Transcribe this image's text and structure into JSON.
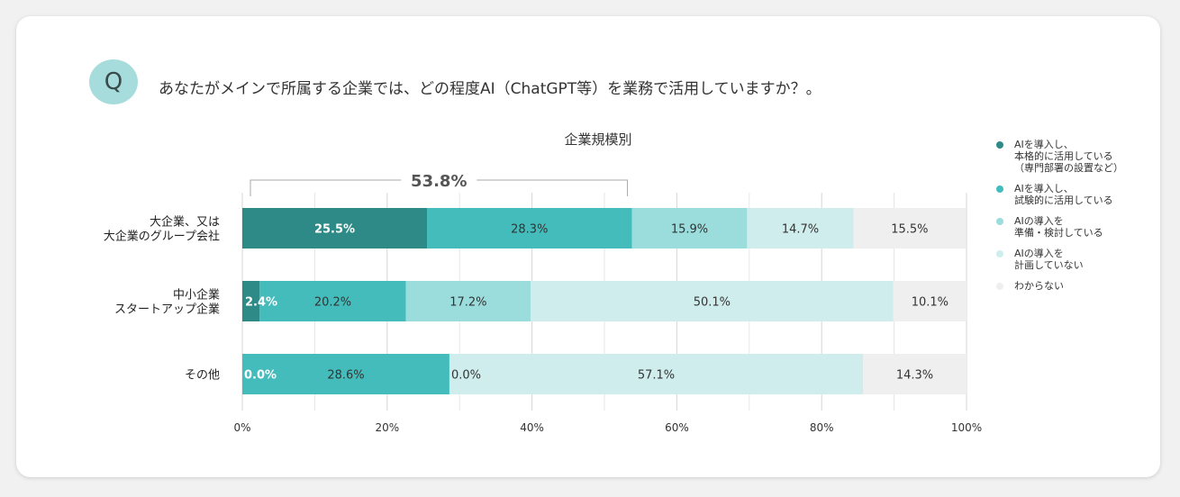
{
  "question": {
    "badge": "Q",
    "text": "あなたがメインで所属する企業では、どの程度AI（ChatGPT等）を業務で活用していますか？。"
  },
  "chart_data": {
    "type": "bar",
    "orientation": "horizontal",
    "stacked": true,
    "title": "企業規模別",
    "categories": [
      "大企業、又は\n大企業のグループ会社",
      "中小企業\nスタートアップ企業",
      "その他"
    ],
    "series": [
      {
        "name": "AIを導入し、\n本格的に活用している\n（専門部署の設置など）",
        "color": "#2e8a87",
        "values": [
          25.5,
          2.4,
          0.0
        ],
        "labels": [
          "25.5%",
          "2.4%",
          "0.0%"
        ]
      },
      {
        "name": "AIを導入し、\n試験的に活用している",
        "color": "#44bcbc",
        "values": [
          28.3,
          20.2,
          28.6
        ],
        "labels": [
          "28.3%",
          "20.2%",
          "28.6%"
        ]
      },
      {
        "name": "AIの導入を\n準備・検討している",
        "color": "#9bdcdc",
        "values": [
          15.9,
          17.2,
          0.0
        ],
        "labels": [
          "15.9%",
          "17.2%",
          "0.0%"
        ]
      },
      {
        "name": "AIの導入を\n計画していない",
        "color": "#cfeded",
        "values": [
          14.7,
          50.1,
          57.1
        ],
        "labels": [
          "14.7%",
          "50.1%",
          "57.1%"
        ]
      },
      {
        "name": "わからない",
        "color": "#efefef",
        "values": [
          15.5,
          10.1,
          14.3
        ],
        "labels": [
          "15.5%",
          "10.1%",
          "14.3%"
        ]
      }
    ],
    "xlim": [
      0,
      100
    ],
    "xticks": [
      "0%",
      "20%",
      "40%",
      "60%",
      "80%",
      "100%"
    ],
    "grid": true,
    "annotation": {
      "text": "53.8%",
      "from": 0,
      "to": 53.8,
      "category_index": 0
    },
    "legend_position": "right"
  }
}
